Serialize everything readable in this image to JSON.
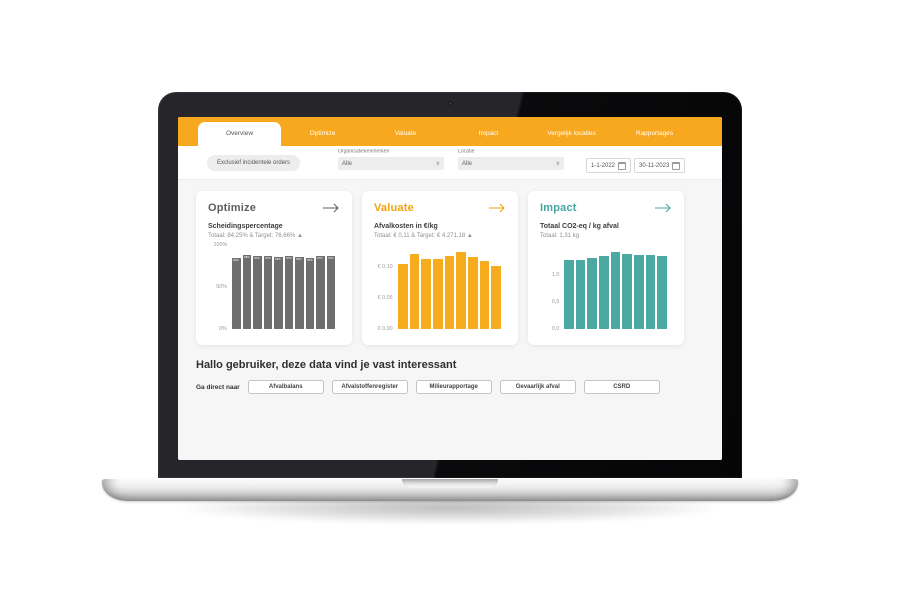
{
  "tabs": {
    "items": [
      {
        "label": "Overview",
        "active": true
      },
      {
        "label": "Optimize",
        "active": false
      },
      {
        "label": "Valuate",
        "active": false
      },
      {
        "label": "Impact",
        "active": false
      },
      {
        "label": "Vergelijk locaties",
        "active": false
      },
      {
        "label": "Rapportages",
        "active": false
      }
    ],
    "accent_color": "#F7A81E"
  },
  "filters": {
    "exclude_button": "Exclusief incidentele orders",
    "org_label": "Organisatiekenmerken",
    "org_value": "Alle",
    "location_label": "Locatie",
    "location_value": "Alle",
    "date_from": "1-1-2022",
    "date_to": "30-11-2023"
  },
  "icons": {
    "chevron_down": "∨",
    "calendar": "css-shape",
    "arrow_right": "svg-long-arrow"
  },
  "cards": [
    {
      "title": "Optimize",
      "accent": "#5E5E5E",
      "metric": "Scheidingspercentage",
      "stats": "Totaal: 84,25% & Target: 76,66% ▲"
    },
    {
      "title": "Valuate",
      "accent": "#F2A20C",
      "metric": "Afvalkosten in €/kg",
      "stats": "Totaal: € 0,11 & Target: € 4.271,18 ▲"
    },
    {
      "title": "Impact",
      "accent": "#47A6A1",
      "metric": "Totaal CO2-eq / kg afval",
      "stats": "Totaal: 1,31 kg"
    }
  ],
  "chart_data": [
    {
      "type": "bar",
      "title": "Scheidingspercentage",
      "color": "#6E6E6E",
      "ymax": 100,
      "ticks": [
        {
          "label": "100%",
          "value": 100
        },
        {
          "label": "50%",
          "value": 50
        },
        {
          "label": "0%",
          "value": 0
        }
      ],
      "values": [
        84,
        88,
        87,
        87,
        86,
        87,
        86,
        85,
        87,
        87
      ],
      "bar_labels": [
        "84%",
        "88%",
        "87%",
        "87%",
        "86%",
        "87%",
        "86%",
        "85%",
        "87%",
        "87%"
      ]
    },
    {
      "type": "bar",
      "title": "Afvalkosten in €/kg",
      "color": "#F7AC1E",
      "ymax": 0.135,
      "ticks": [
        {
          "label": "€ 0,10",
          "value": 0.1
        },
        {
          "label": "€ 0,05",
          "value": 0.05
        },
        {
          "label": "€ 0,00",
          "value": 0
        }
      ],
      "values": [
        0.105,
        0.121,
        0.113,
        0.113,
        0.117,
        0.123,
        0.116,
        0.11,
        0.101
      ]
    },
    {
      "type": "bar",
      "title": "Totaal CO2-eq / kg afval",
      "color": "#4CA8A3",
      "ymax": 1.55,
      "ticks": [
        {
          "label": "1,0",
          "value": 1.0
        },
        {
          "label": "0,5",
          "value": 0.5
        },
        {
          "label": "0,0",
          "value": 0
        }
      ],
      "values": [
        1.27,
        1.27,
        1.31,
        1.34,
        1.43,
        1.38,
        1.36,
        1.36,
        1.34
      ]
    }
  ],
  "greeting": {
    "title": "Hallo gebruiker, deze data vind je vast interessant"
  },
  "quick_links": {
    "label": "Ga direct naar",
    "buttons": [
      "Afvalbalans",
      "Afvalstoffenregister",
      "Milieurapportage",
      "Gevaarlijk afval",
      "CSRD"
    ]
  }
}
